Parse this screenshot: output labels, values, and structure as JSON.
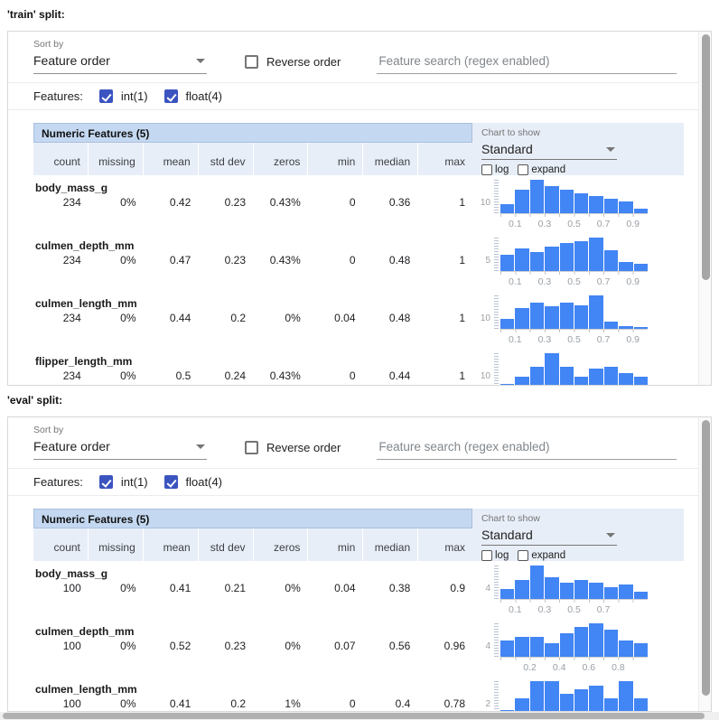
{
  "page": {
    "train_split_label": "'train' split:",
    "eval_split_label": "'eval' split:"
  },
  "controls": {
    "sort_by_label": "Sort by",
    "sort_by_value": "Feature order",
    "reverse_order_label": "Reverse order",
    "search_placeholder": "Feature search (regex enabled)",
    "features_label": "Features:",
    "feature_type_int": "int(1)",
    "feature_type_float": "float(4)",
    "chart_to_show_label": "Chart to show",
    "chart_to_show_value": "Standard",
    "log_label": "log",
    "expand_label": "expand"
  },
  "table": {
    "title": "Numeric Features (5)",
    "columns": [
      "count",
      "missing",
      "mean",
      "std dev",
      "zeros",
      "min",
      "median",
      "max"
    ]
  },
  "colors": {
    "bar_blue": "#4285f4",
    "header_blue": "#c4d8f1",
    "subheader_blue": "#e8eef8",
    "checkbox_blue": "#3b54c0"
  },
  "splits": [
    {
      "name": "train",
      "rows": [
        {
          "feature": "body_mass_g",
          "values": [
            "234",
            "0%",
            "0.42",
            "0.23",
            "0.43%",
            "0",
            "0.36",
            "1"
          ],
          "hist_index": 0
        },
        {
          "feature": "culmen_depth_mm",
          "values": [
            "234",
            "0%",
            "0.47",
            "0.23",
            "0.43%",
            "0",
            "0.48",
            "1"
          ],
          "hist_index": 1
        },
        {
          "feature": "culmen_length_mm",
          "values": [
            "234",
            "0%",
            "0.44",
            "0.2",
            "0%",
            "0.04",
            "0.48",
            "1"
          ],
          "hist_index": 2
        },
        {
          "feature": "flipper_length_mm",
          "values": [
            "234",
            "0%",
            "0.5",
            "0.24",
            "0.43%",
            "0",
            "0.44",
            "1"
          ],
          "hist_index": 3
        }
      ]
    },
    {
      "name": "eval",
      "rows": [
        {
          "feature": "body_mass_g",
          "values": [
            "100",
            "0%",
            "0.41",
            "0.21",
            "0%",
            "0.04",
            "0.38",
            "0.9"
          ],
          "hist_index": 4
        },
        {
          "feature": "culmen_depth_mm",
          "values": [
            "100",
            "0%",
            "0.52",
            "0.23",
            "0%",
            "0.07",
            "0.56",
            "0.96"
          ],
          "hist_index": 5
        },
        {
          "feature": "culmen_length_mm",
          "values": [
            "100",
            "0%",
            "0.41",
            "0.2",
            "1%",
            "0",
            "0.4",
            "0.78"
          ],
          "hist_index": 6
        }
      ]
    }
  ],
  "chart_data": [
    {
      "type": "bar",
      "split": "train",
      "feature": "body_mass_g",
      "x_range": [
        0,
        1
      ],
      "bin_count": 10,
      "y_axis_label": "10",
      "x_tick_labels": [
        "0.1",
        "0.3",
        "0.5",
        "0.7",
        "0.9"
      ],
      "values": [
        10,
        27,
        38,
        31,
        27,
        23,
        20,
        16,
        13,
        5
      ]
    },
    {
      "type": "bar",
      "split": "train",
      "feature": "culmen_depth_mm",
      "x_range": [
        0,
        1
      ],
      "bin_count": 10,
      "y_axis_label": "5",
      "x_tick_labels": [
        "0.1",
        "0.3",
        "0.5",
        "0.7",
        "0.9"
      ],
      "values": [
        9,
        13,
        11,
        14,
        16,
        17,
        19,
        12,
        5,
        4
      ]
    },
    {
      "type": "bar",
      "split": "train",
      "feature": "culmen_length_mm",
      "x_range": [
        0,
        1
      ],
      "bin_count": 10,
      "y_axis_label": "10",
      "x_tick_labels": [
        "0.1",
        "0.3",
        "0.5",
        "0.7",
        "0.9"
      ],
      "values": [
        10,
        22,
        27,
        24,
        27,
        25,
        35,
        8,
        3,
        2
      ]
    },
    {
      "type": "bar",
      "split": "train",
      "feature": "flipper_length_mm",
      "x_range": [
        0,
        1
      ],
      "bin_count": 10,
      "y_axis_label": "10",
      "x_tick_labels": [
        "0.1",
        "0.3",
        "0.5",
        "0.7",
        "0.9"
      ],
      "values": [
        2,
        8,
        17,
        28,
        17,
        8,
        15,
        17,
        11,
        8
      ]
    },
    {
      "type": "bar",
      "split": "eval",
      "feature": "body_mass_g",
      "x_range": [
        0,
        1
      ],
      "bin_count": 10,
      "y_axis_label": "4",
      "x_tick_labels": [
        "0.1",
        "0.3",
        "0.5",
        "0.7"
      ],
      "values": [
        4,
        8,
        14,
        9,
        7,
        8,
        7,
        5,
        6,
        3
      ]
    },
    {
      "type": "bar",
      "split": "eval",
      "feature": "culmen_depth_mm",
      "x_range": [
        0,
        1
      ],
      "bin_count": 10,
      "y_axis_label": "4",
      "x_tick_labels": [
        "0.2",
        "0.4",
        "0.6",
        "0.8"
      ],
      "values": [
        5,
        6,
        6,
        4,
        7,
        9,
        10,
        8,
        5,
        4
      ]
    },
    {
      "type": "bar",
      "split": "eval",
      "feature": "culmen_length_mm",
      "x_range": [
        0,
        1
      ],
      "bin_count": 10,
      "y_axis_label": "2",
      "x_tick_labels": [],
      "values": [
        1,
        4,
        8,
        8,
        5,
        6,
        7,
        4,
        8,
        4
      ]
    }
  ]
}
